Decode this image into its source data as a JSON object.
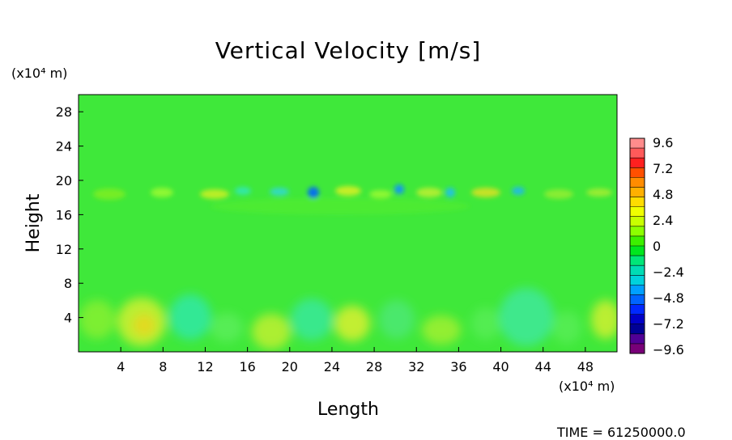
{
  "chart_data": {
    "type": "heatmap",
    "title": "Vertical Velocity [m/s]",
    "xlabel": "Length",
    "ylabel": "Height",
    "x_unit": "(x10⁴ m)",
    "y_unit": "(x10⁴ m)",
    "x_ticks": [
      4,
      8,
      12,
      16,
      20,
      24,
      28,
      32,
      36,
      40,
      44,
      48
    ],
    "y_ticks": [
      4,
      8,
      12,
      16,
      20,
      24,
      28
    ],
    "xlim": [
      0,
      51
    ],
    "ylim": [
      0,
      30
    ],
    "colorbar": {
      "labels": [
        "9.6",
        "7.2",
        "4.8",
        "2.4",
        "0",
        "−2.4",
        "−4.8",
        "−7.2",
        "−9.6"
      ],
      "levels": [
        9.6,
        7.2,
        4.8,
        2.4,
        0,
        -2.4,
        -4.8,
        -7.2,
        -9.6
      ],
      "colors_top_to_bottom": [
        "#ff8c8c",
        "#ff5a5a",
        "#ff2020",
        "#ff5000",
        "#ff8c00",
        "#ffb000",
        "#ffdc00",
        "#f0ff00",
        "#c8ff00",
        "#8cff00",
        "#3cf000",
        "#00e61e",
        "#00e678",
        "#00dcb4",
        "#00d2dc",
        "#00a0ff",
        "#0064ff",
        "#0028ff",
        "#0000c8",
        "#000096",
        "#500096",
        "#780078"
      ]
    },
    "background_color": "#3fe83a",
    "annotation": "TIME = 61250000.0"
  }
}
